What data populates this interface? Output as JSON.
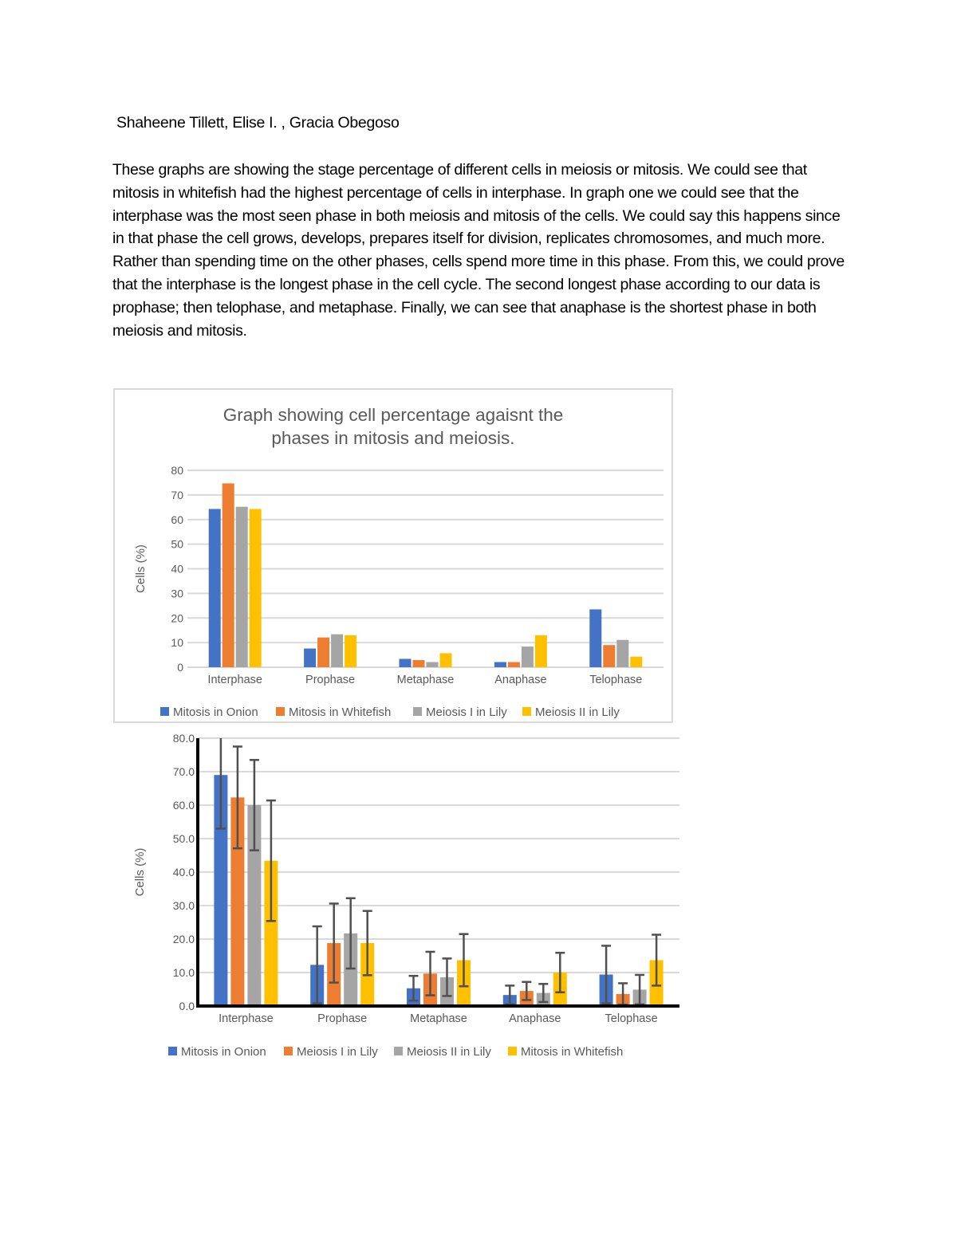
{
  "document": {
    "authors": "Shaheene Tillett, Elise I.    , Gracia Obegoso",
    "paragraph": "These graphs are showing the stage percentage of different cells in meiosis or mitosis. We could see that mitosis in whitefish had the highest percentage of cells in interphase. In graph one we could see that the interphase was the most seen phase in both meiosis and mitosis of the cells. We could say this happens since in that phase the cell grows, develops, prepares itself for division, replicates chromosomes, and much more. Rather than spending time on the other phases, cells spend more time in this phase. From this, we could prove that the interphase is the longest phase in the cell cycle. The second longest phase according to our data is prophase; then telophase, and metaphase. Finally, we can see that anaphase is the shortest phase in both meiosis and mitosis."
  },
  "chart_data": [
    {
      "type": "bar",
      "title": "Graph showing cell percentage agaisnt the phases in mitosis and meiosis.",
      "title_lines": [
        "Graph showing cell percentage agaisnt the",
        "phases in mitosis and meiosis."
      ],
      "xlabel": "",
      "ylabel": "Cells (%)",
      "ylim": [
        0,
        80
      ],
      "yticks": [
        "0",
        "10",
        "20",
        "30",
        "40",
        "50",
        "60",
        "70",
        "80"
      ],
      "grid": true,
      "legend": "bottom",
      "categories": [
        "Interphase",
        "Prophase",
        "Metaphase",
        "Anaphase",
        "Telophase"
      ],
      "series": [
        {
          "name": "Mitosis in Onion",
          "color": "#4472c4",
          "values": [
            64.3,
            7.6,
            3.4,
            2.1,
            23.5
          ]
        },
        {
          "name": "Mitosis in Whitefish",
          "color": "#ed7d31",
          "values": [
            74.7,
            12.1,
            2.9,
            2.1,
            9.0
          ]
        },
        {
          "name": "Meiosis I in Lily",
          "color": "#a5a5a5",
          "values": [
            65.2,
            13.4,
            2.1,
            8.4,
            11.1
          ]
        },
        {
          "name": "Meiosis II in Lily",
          "color": "#ffc000",
          "values": [
            64.3,
            13.0,
            5.7,
            13.0,
            4.3
          ]
        }
      ]
    },
    {
      "type": "bar",
      "xlabel": "",
      "ylabel": "Cells (%)",
      "ylim": [
        0,
        80
      ],
      "yticks": [
        "0.0",
        "10.0",
        "20.0",
        "30.0",
        "40.0",
        "50.0",
        "60.0",
        "70.0",
        "80.0"
      ],
      "grid": true,
      "legend": "bottom",
      "error_bars": true,
      "categories": [
        "Interphase",
        "Prophase",
        "Metaphase",
        "Anaphase",
        "Telophase"
      ],
      "series": [
        {
          "name": "Mitosis in Onion",
          "color": "#4472c4",
          "values": [
            69.0,
            12.3,
            5.3,
            3.3,
            9.4
          ],
          "errors": [
            16.0,
            11.5,
            3.7,
            2.8,
            8.6
          ]
        },
        {
          "name": "Meiosis I in Lily",
          "color": "#ed7d31",
          "values": [
            62.3,
            18.8,
            9.7,
            4.5,
            3.6
          ],
          "errors": [
            15.2,
            11.8,
            6.5,
            2.7,
            3.2
          ]
        },
        {
          "name": "Meiosis II in Lily",
          "color": "#a5a5a5",
          "values": [
            60.0,
            21.7,
            8.6,
            3.9,
            4.9
          ],
          "errors": [
            13.5,
            10.5,
            5.6,
            2.7,
            4.4
          ]
        },
        {
          "name": "Mitosis in Whitefish",
          "color": "#ffc000",
          "values": [
            43.4,
            18.8,
            13.7,
            10.0,
            13.7
          ],
          "errors": [
            18.0,
            9.6,
            7.8,
            5.9,
            7.6
          ]
        }
      ]
    }
  ]
}
